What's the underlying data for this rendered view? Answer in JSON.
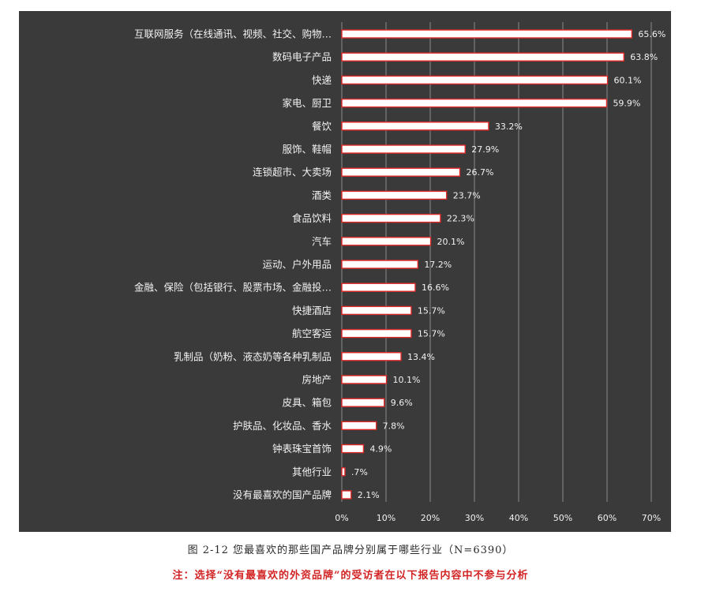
{
  "chart_data": {
    "type": "bar",
    "orientation": "horizontal",
    "categories": [
      "互联网服务（在线通讯、视频、社交、购物…",
      "数码电子产品",
      "快递",
      "家电、厨卫",
      "餐饮",
      "服饰、鞋帽",
      "连锁超市、大卖场",
      "酒类",
      "食品饮料",
      "汽车",
      "运动、户外用品",
      "金融、保险（包括银行、股票市场、金融投…",
      "快捷酒店",
      "航空客运",
      "乳制品（奶粉、液态奶等各种乳制品",
      "房地产",
      "皮具、箱包",
      "护肤品、化妆品、香水",
      "钟表珠宝首饰",
      "其他行业",
      "没有最喜欢的国产品牌"
    ],
    "values": [
      65.6,
      63.8,
      60.1,
      59.9,
      33.2,
      27.9,
      26.7,
      23.7,
      22.3,
      20.1,
      17.2,
      16.6,
      15.7,
      15.7,
      13.4,
      10.1,
      9.6,
      7.8,
      4.9,
      0.7,
      2.1
    ],
    "data_labels": [
      "65.6%",
      "63.8%",
      "60.1%",
      "59.9%",
      "33.2%",
      "27.9%",
      "26.7%",
      "23.7%",
      "22.3%",
      "20.1%",
      "17.2%",
      "16.6%",
      "15.7%",
      "15.7%",
      "13.4%",
      "10.1%",
      "9.6%",
      "7.8%",
      "4.9%",
      ".7%",
      "2.1%"
    ],
    "x_ticks": [
      "0%",
      "10%",
      "20%",
      "30%",
      "40%",
      "50%",
      "60%",
      "70%"
    ],
    "xlim": [
      0,
      70
    ],
    "grid": true,
    "colors": {
      "background": "#3a3a3a",
      "bar_fill": "#ffffff",
      "bar_stroke": "#e02a2a",
      "grid": "#8a8a8a",
      "text": "#f2f2f2"
    }
  },
  "figure_caption": "图 2-12 您最喜欢的那些国产品牌分别属于哪些行业（N=6390）",
  "note": "注：选择“没有最喜欢的外资品牌”的受访者在以下报告内容中不参与分析"
}
